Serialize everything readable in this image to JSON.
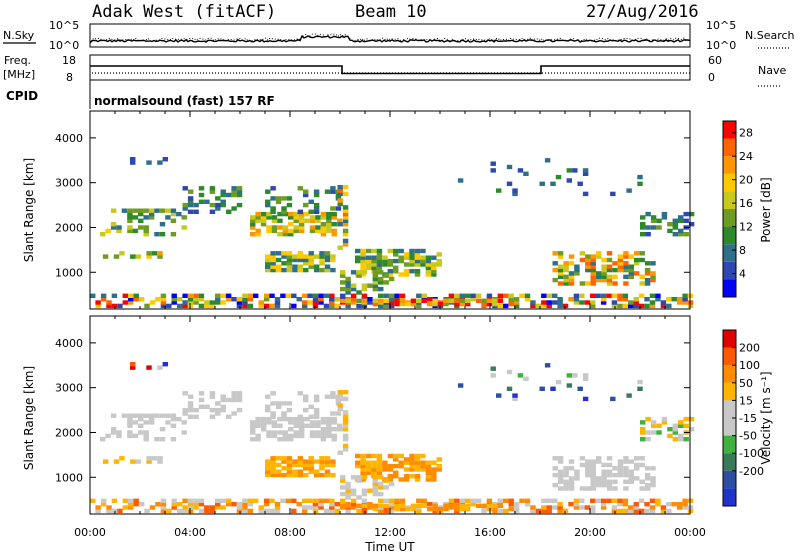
{
  "header": {
    "station": "Adak West (fitACF)",
    "beam": "Beam 10",
    "date": "27/Aug/2016"
  },
  "panels": {
    "nsky_label": "N.Sky",
    "nsearch_label": "N.Search",
    "nsky_ticks": [
      "10^5",
      "10^0"
    ],
    "nsearch_ticks": [
      "10^5",
      "10^0"
    ],
    "freq_label_line1": "Freq.",
    "freq_label_line2": "[MHz]",
    "freq_ticks": [
      "18",
      "8"
    ],
    "nave_label": "Nave",
    "nave_ticks": [
      "60",
      "0"
    ],
    "cpid_label": "CPID",
    "cpid_text": "normalsound (fast) 157 RF"
  },
  "colors": {
    "power": [
      "#0000ff",
      "#2f47b0",
      "#2e6f8a",
      "#2c8a2c",
      "#6e9b22",
      "#c8c81e",
      "#ffc800",
      "#ff9600",
      "#ff6400",
      "#ff0000"
    ],
    "velocity": [
      "#2233cc",
      "#2c4fa0",
      "#3a7a5a",
      "#40b040",
      "#c8c8c8",
      "#c8c8c8",
      "#ffb400",
      "#ff8c00",
      "#ff5a00",
      "#e00000"
    ]
  },
  "chart_data": [
    {
      "type": "heatmap",
      "quantity": "power",
      "ylabel": "Slant Range [km]",
      "xlabel": "",
      "xlim": [
        "00:00",
        "00:00"
      ],
      "x_ticks": [
        "00:00",
        "04:00",
        "08:00",
        "12:00",
        "16:00",
        "20:00",
        "00:00"
      ],
      "ylim": [
        180,
        4600
      ],
      "y_ticks": [
        1000,
        2000,
        3000,
        4000
      ],
      "colorbar_label": "Power [dB]",
      "colorbar_ticks": [
        "4",
        "8",
        "12",
        "16",
        "20",
        "24",
        "28"
      ],
      "colorbar_range": [
        0,
        30
      ]
    },
    {
      "type": "heatmap",
      "quantity": "velocity",
      "ylabel": "Slant Range [km]",
      "xlabel": "Time UT",
      "xlim": [
        "00:00",
        "00:00"
      ],
      "x_ticks": [
        "00:00",
        "04:00",
        "08:00",
        "12:00",
        "16:00",
        "20:00",
        "00:00"
      ],
      "ylim": [
        180,
        4600
      ],
      "y_ticks": [
        1000,
        2000,
        3000,
        4000
      ],
      "colorbar_label": "Velocity [m s⁻¹]",
      "colorbar_ticks": [
        "200",
        "100",
        "50",
        "15",
        "-15",
        "-50",
        "-100",
        "-200"
      ]
    }
  ]
}
